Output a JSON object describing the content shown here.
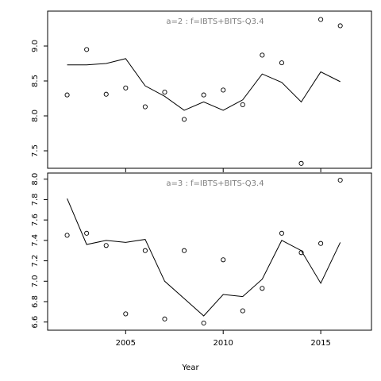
{
  "chart_data": [
    {
      "type": "line",
      "title": "a=2  :  f=IBTS+BITS-Q3.4",
      "xlim": [
        2001,
        2017.6
      ],
      "ylim": [
        7.25,
        9.5
      ],
      "xticks": [
        2005,
        2010,
        2015
      ],
      "yticks": [
        7.5,
        8.0,
        8.5,
        9.0
      ],
      "ytick_labels": [
        "7.5",
        "8.0",
        "8.5",
        "9.0"
      ],
      "show_xtick_labels": false,
      "series": [
        {
          "kind": "line",
          "x": [
            2002,
            2003,
            2004,
            2005,
            2006,
            2007,
            2008,
            2009,
            2010,
            2011,
            2012,
            2013,
            2014,
            2015,
            2016
          ],
          "y": [
            8.73,
            8.73,
            8.75,
            8.82,
            8.43,
            8.28,
            8.08,
            8.2,
            8.08,
            8.23,
            8.6,
            8.48,
            8.2,
            8.63,
            8.49
          ]
        },
        {
          "kind": "points",
          "x": [
            2002,
            2003,
            2004,
            2005,
            2006,
            2007,
            2008,
            2009,
            2010,
            2011,
            2012,
            2013,
            2014,
            2015,
            2016
          ],
          "y": [
            8.3,
            8.95,
            8.31,
            8.4,
            8.13,
            8.34,
            7.95,
            8.3,
            8.37,
            8.16,
            8.87,
            8.76,
            7.32,
            9.38,
            9.29
          ]
        }
      ]
    },
    {
      "type": "line",
      "title": "a=3  :  f=IBTS+BITS-Q3.4",
      "xlim": [
        2001,
        2017.6
      ],
      "ylim": [
        6.52,
        8.06
      ],
      "xticks": [
        2005,
        2010,
        2015
      ],
      "yticks": [
        6.6,
        6.8,
        7.0,
        7.2,
        7.4,
        7.6,
        7.8,
        8.0
      ],
      "ytick_labels": [
        "6.6",
        "6.8",
        "7.0",
        "7.2",
        "7.4",
        "7.6",
        "7.8",
        "8.0"
      ],
      "xtick_labels": [
        "2005",
        "2010",
        "2015"
      ],
      "show_xtick_labels": true,
      "series": [
        {
          "kind": "line",
          "x": [
            2002,
            2003,
            2004,
            2005,
            2006,
            2007,
            2008,
            2009,
            2010,
            2011,
            2012,
            2013,
            2014,
            2015,
            2016
          ],
          "y": [
            7.81,
            7.36,
            7.4,
            7.38,
            7.41,
            7.0,
            6.83,
            6.66,
            6.87,
            6.85,
            7.02,
            7.4,
            7.3,
            6.98,
            7.38
          ]
        },
        {
          "kind": "points",
          "x": [
            2002,
            2003,
            2004,
            2005,
            2006,
            2007,
            2008,
            2009,
            2010,
            2011,
            2012,
            2013,
            2014,
            2015,
            2016
          ],
          "y": [
            7.45,
            7.47,
            7.35,
            6.68,
            7.3,
            6.63,
            7.3,
            6.59,
            7.21,
            6.71,
            6.93,
            7.47,
            7.28,
            7.37,
            7.99
          ]
        }
      ]
    }
  ],
  "xlabel": "Year"
}
